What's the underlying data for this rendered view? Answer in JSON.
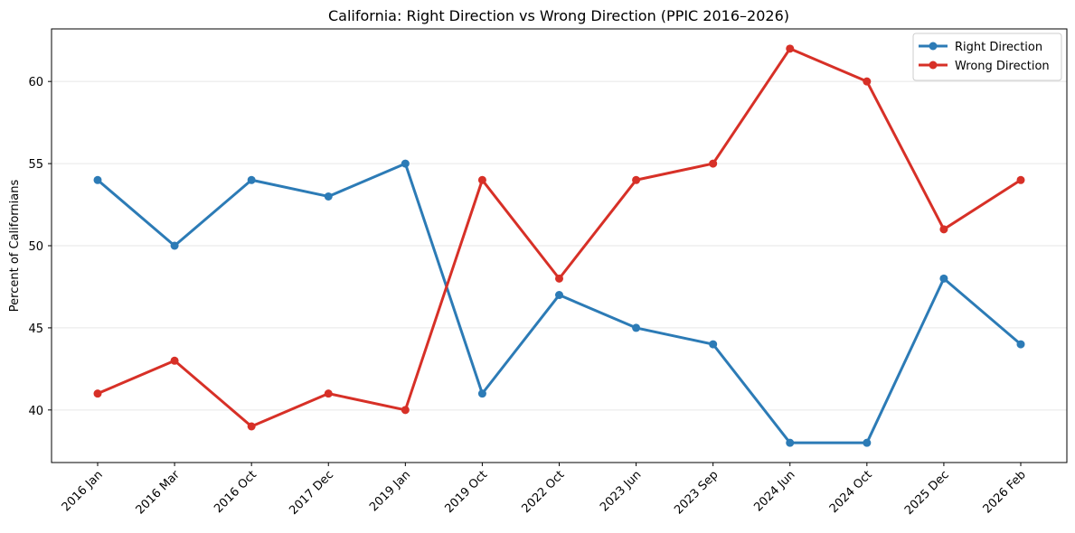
{
  "chart_data": {
    "type": "line",
    "title": "California: Right Direction vs Wrong Direction (PPIC 2016–2026)",
    "xlabel": "",
    "ylabel": "Percent of Californians",
    "categories": [
      "2016 Jan",
      "2016 Mar",
      "2016 Oct",
      "2017 Dec",
      "2019 Jan",
      "2019 Oct",
      "2022 Oct",
      "2023 Jun",
      "2023 Sep",
      "2024 Jun",
      "2024 Oct",
      "2025 Dec",
      "2026 Feb"
    ],
    "yticks": [
      40,
      45,
      50,
      55,
      60
    ],
    "ylim": [
      36.8,
      63.2
    ],
    "grid": "horizontal",
    "legend_position": "top-right",
    "series": [
      {
        "name": "Right Direction",
        "color": "#2c7bb6",
        "values": [
          54,
          50,
          54,
          53,
          55,
          41,
          47,
          45,
          44,
          38,
          38,
          48,
          44
        ]
      },
      {
        "name": "Wrong Direction",
        "color": "#d73027",
        "values": [
          41,
          43,
          39,
          41,
          40,
          54,
          48,
          54,
          55,
          62,
          60,
          51,
          54
        ]
      }
    ]
  }
}
